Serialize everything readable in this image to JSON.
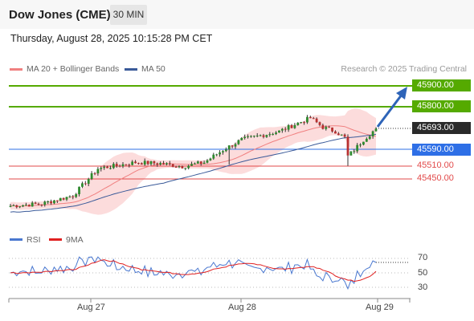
{
  "header": {
    "title": "Dow Jones (CME)",
    "timeframe": "30 MIN",
    "datetime": "Thursday, August 28, 2025 10:15:28 PM CET"
  },
  "legend": {
    "ma20_label": "MA 20 + Bollinger Bands",
    "ma50_label": "MA 50",
    "research": "Research © 2025 Trading Central"
  },
  "levels": {
    "r2": {
      "label": "45900.00",
      "color": "#55aa00"
    },
    "r1": {
      "label": "45800.00",
      "color": "#55aa00"
    },
    "last": {
      "label": "45693.00",
      "color": "#2a2a2a"
    },
    "pivot": {
      "label": "45590.00",
      "color": "#2e6fe6"
    },
    "s1": {
      "label": "45510.00",
      "color": "#e24a4a"
    },
    "s2": {
      "label": "45450.00",
      "color": "#e24a4a"
    }
  },
  "rsi": {
    "rsi_label": "RSI",
    "ma_label": "9MA",
    "ticks": [
      "70",
      "50",
      "30"
    ]
  },
  "xaxis": {
    "labels": [
      "Aug 27",
      "Aug 28",
      "Aug 29"
    ]
  },
  "colors": {
    "bull": "#2e8b2e",
    "bear": "#b83030",
    "ma20": "#f08080",
    "ma50": "#3a5a99",
    "band": "#fbd0d0",
    "rsi": "#4a78d0",
    "rsi_ma": "#e02020",
    "arrow": "#2e64b8"
  }
}
